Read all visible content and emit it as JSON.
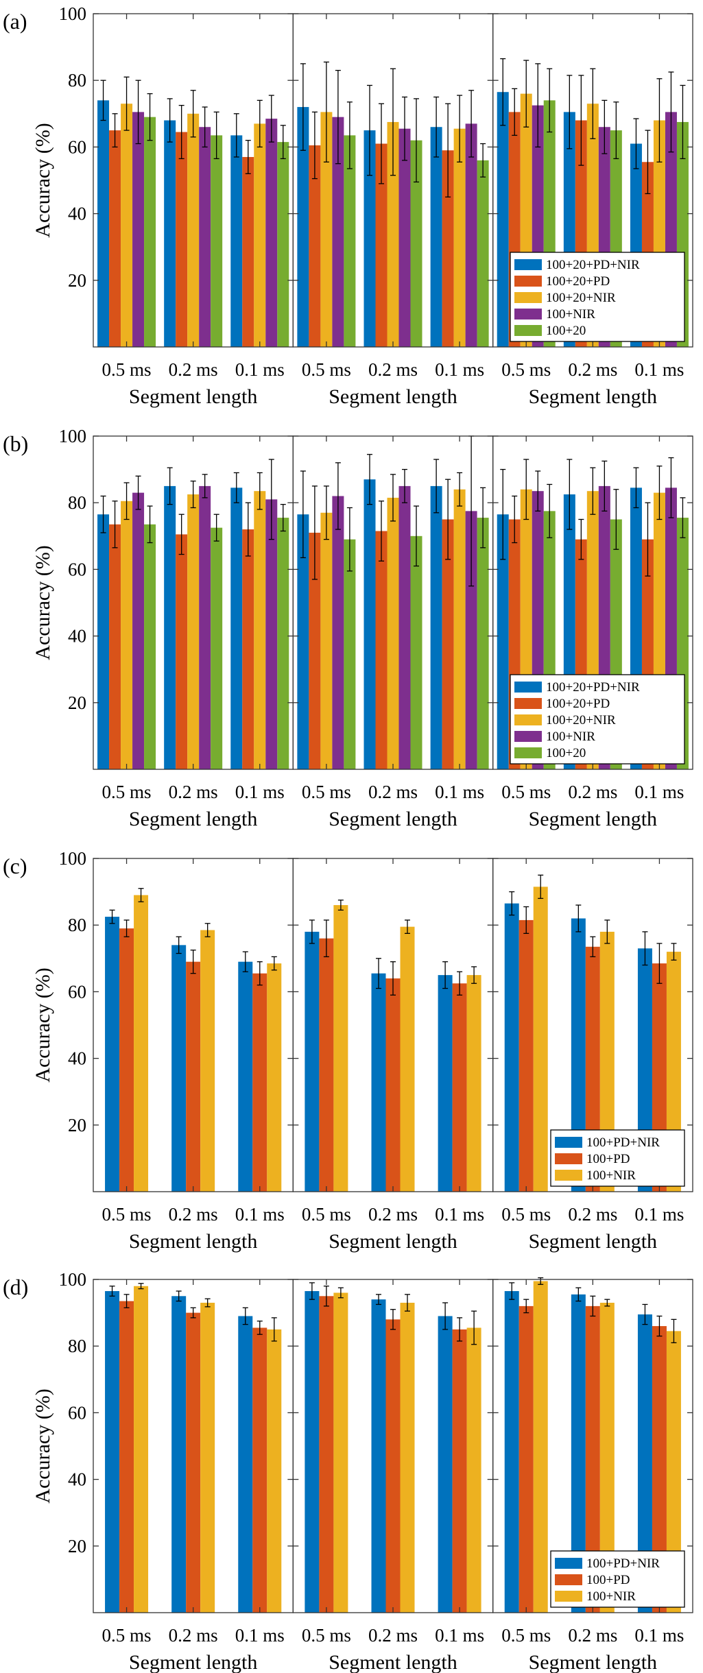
{
  "colors": {
    "blue": "#0072BD",
    "orange": "#D95319",
    "yellow": "#EDB120",
    "purple": "#7E2F8E",
    "green": "#77AC30"
  },
  "chart_data": [
    {
      "type": "bar",
      "panel_label": "(a)",
      "ylabel": "Accuracy (%)",
      "xlabel": "Segment length",
      "ylim": [
        0,
        100
      ],
      "yticks": [
        20,
        40,
        60,
        80,
        100
      ],
      "categories": [
        "0.5 ms",
        "0.2 ms",
        "0.1 ms"
      ],
      "series_names": [
        "100+20+PD+NIR",
        "100+20+PD",
        "100+20+NIR",
        "100+NIR",
        "100+20"
      ],
      "series_colors": [
        "#0072BD",
        "#D95319",
        "#EDB120",
        "#7E2F8E",
        "#77AC30"
      ],
      "legend_subplot": 2,
      "subplots": [
        {
          "values": [
            [
              74,
              65,
              73,
              70.5,
              69
            ],
            [
              68,
              64.5,
              70,
              66,
              63.5
            ],
            [
              63.5,
              57,
              67,
              68.5,
              61.5
            ]
          ],
          "errors": [
            [
              6,
              5,
              8,
              9.5,
              7
            ],
            [
              6.5,
              8,
              7,
              6,
              7
            ],
            [
              6.5,
              5,
              7,
              7,
              5
            ]
          ]
        },
        {
          "values": [
            [
              72,
              60.5,
              70.5,
              69,
              63.5
            ],
            [
              65,
              61,
              67.5,
              65.5,
              62
            ],
            [
              66,
              59,
              65.5,
              67,
              56
            ]
          ],
          "errors": [
            [
              13,
              10,
              15,
              14,
              10
            ],
            [
              13.5,
              12,
              16,
              9.5,
              12.5
            ],
            [
              9,
              14,
              10,
              10,
              5
            ]
          ]
        },
        {
          "values": [
            [
              76.5,
              70.5,
              76,
              72.5,
              74
            ],
            [
              70.5,
              68,
              73,
              66,
              65
            ],
            [
              61,
              55.5,
              68,
              70.5,
              67.5
            ]
          ],
          "errors": [
            [
              10,
              7,
              10,
              12.5,
              9.5
            ],
            [
              11,
              13.5,
              10.5,
              8,
              8.5
            ],
            [
              7.5,
              9.5,
              12.5,
              12,
              11
            ]
          ]
        }
      ]
    },
    {
      "type": "bar",
      "panel_label": "(b)",
      "ylabel": "Accuracy (%)",
      "xlabel": "Segment length",
      "ylim": [
        0,
        100
      ],
      "yticks": [
        20,
        40,
        60,
        80,
        100
      ],
      "categories": [
        "0.5 ms",
        "0.2 ms",
        "0.1 ms"
      ],
      "series_names": [
        "100+20+PD+NIR",
        "100+20+PD",
        "100+20+NIR",
        "100+NIR",
        "100+20"
      ],
      "series_colors": [
        "#0072BD",
        "#D95319",
        "#EDB120",
        "#7E2F8E",
        "#77AC30"
      ],
      "legend_subplot": 2,
      "subplots": [
        {
          "values": [
            [
              76.5,
              73.5,
              80.5,
              83,
              73.5
            ],
            [
              85,
              70.5,
              82.5,
              85,
              72.5
            ],
            [
              84.5,
              72,
              83.5,
              81,
              75.5
            ]
          ],
          "errors": [
            [
              5.5,
              7,
              5.5,
              5,
              5.5
            ],
            [
              5.5,
              6,
              4,
              3.5,
              4
            ],
            [
              4.5,
              8,
              5.5,
              12,
              4
            ]
          ]
        },
        {
          "values": [
            [
              76.5,
              71,
              77,
              82,
              69
            ],
            [
              87,
              71.5,
              81.5,
              85,
              70
            ],
            [
              85,
              75,
              84,
              77.5,
              75.5
            ]
          ],
          "errors": [
            [
              13,
              14,
              8,
              10,
              9.5
            ],
            [
              7.5,
              9,
              7,
              5,
              9
            ],
            [
              8,
              12,
              5,
              22.5,
              9
            ]
          ]
        },
        {
          "values": [
            [
              76.5,
              75,
              84,
              83.5,
              77.5
            ],
            [
              82.5,
              69,
              83.5,
              85,
              75
            ],
            [
              84.5,
              69,
              83,
              84.5,
              75.5
            ]
          ],
          "errors": [
            [
              13.5,
              7,
              9,
              6,
              8
            ],
            [
              10.5,
              6,
              7,
              7.5,
              9
            ],
            [
              6,
              11,
              8,
              9,
              6
            ]
          ]
        }
      ]
    },
    {
      "type": "bar",
      "panel_label": "(c)",
      "ylabel": "Accuracy (%)",
      "xlabel": "Segment length",
      "ylim": [
        0,
        100
      ],
      "yticks": [
        20,
        40,
        60,
        80,
        100
      ],
      "categories": [
        "0.5 ms",
        "0.2 ms",
        "0.1 ms"
      ],
      "series_names": [
        "100+PD+NIR",
        "100+PD",
        "100+NIR"
      ],
      "series_colors": [
        "#0072BD",
        "#D95319",
        "#EDB120"
      ],
      "legend_subplot": 2,
      "subplots": [
        {
          "values": [
            [
              82.5,
              79,
              89
            ],
            [
              74,
              69,
              78.5
            ],
            [
              69,
              65.5,
              68.5
            ]
          ],
          "errors": [
            [
              2,
              2.5,
              2
            ],
            [
              2.5,
              3.5,
              2
            ],
            [
              3,
              3.5,
              2
            ]
          ]
        },
        {
          "values": [
            [
              78,
              76,
              86
            ],
            [
              65.5,
              64,
              79.5
            ],
            [
              65,
              62.5,
              65
            ]
          ],
          "errors": [
            [
              3.5,
              5.5,
              1.5
            ],
            [
              4.5,
              5,
              2
            ],
            [
              4,
              3.5,
              2.5
            ]
          ]
        },
        {
          "values": [
            [
              86.5,
              81.5,
              91.5
            ],
            [
              82,
              73.5,
              78
            ],
            [
              73,
              68.5,
              72
            ]
          ],
          "errors": [
            [
              3.5,
              4,
              3.5
            ],
            [
              4,
              3,
              3.5
            ],
            [
              5,
              6,
              2.5
            ]
          ]
        }
      ]
    },
    {
      "type": "bar",
      "panel_label": "(d)",
      "ylabel": "Accuracy (%)",
      "xlabel": "Segment length",
      "ylim": [
        0,
        100
      ],
      "yticks": [
        20,
        40,
        60,
        80,
        100
      ],
      "categories": [
        "0.5 ms",
        "0.2 ms",
        "0.1 ms"
      ],
      "series_names": [
        "100+PD+NIR",
        "100+PD",
        "100+NIR"
      ],
      "series_colors": [
        "#0072BD",
        "#D95319",
        "#EDB120"
      ],
      "legend_subplot": 2,
      "subplots": [
        {
          "values": [
            [
              96.5,
              93.5,
              98
            ],
            [
              95,
              90,
              93
            ],
            [
              89,
              85.5,
              85
            ]
          ],
          "errors": [
            [
              1.5,
              2,
              0.8
            ],
            [
              1.5,
              1.5,
              1.2
            ],
            [
              2.5,
              2,
              3.5
            ]
          ]
        },
        {
          "values": [
            [
              96.5,
              95,
              96
            ],
            [
              94,
              88,
              93
            ],
            [
              89,
              85,
              85.5
            ]
          ],
          "errors": [
            [
              2.5,
              3,
              1.5
            ],
            [
              1.5,
              3,
              2.5
            ],
            [
              4,
              3.5,
              5
            ]
          ]
        },
        {
          "values": [
            [
              96.5,
              92,
              99.5
            ],
            [
              95.5,
              92,
              93
            ],
            [
              89.5,
              86,
              84.5
            ]
          ],
          "errors": [
            [
              2.5,
              2,
              1
            ],
            [
              2,
              3,
              1
            ],
            [
              3,
              3,
              3.5
            ]
          ]
        }
      ]
    }
  ]
}
